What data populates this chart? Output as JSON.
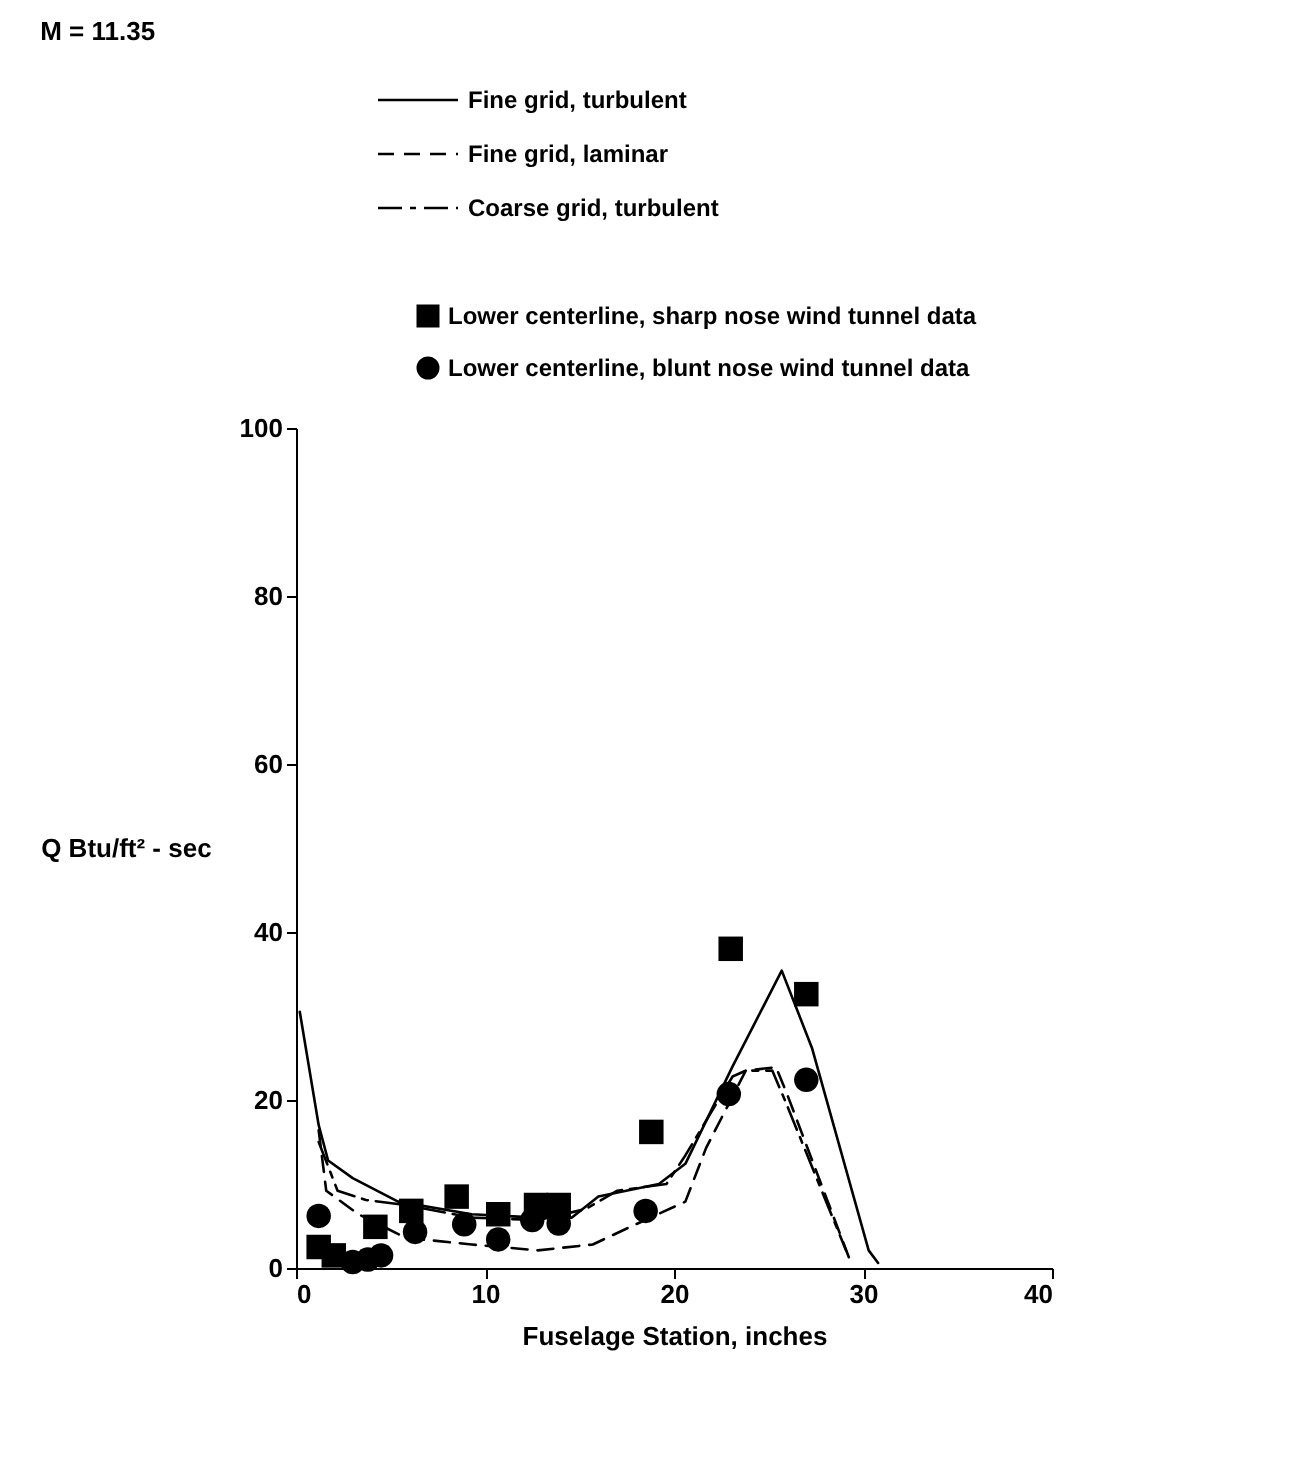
{
  "chart_data": {
    "type": "line",
    "title": "M = 11.35",
    "xlabel": "Fuselage Station, inches",
    "ylabel": "Q Btu/ft² - sec",
    "xlim": [
      0,
      40
    ],
    "ylim": [
      0,
      100
    ],
    "xticks": [
      0,
      10,
      20,
      30,
      40
    ],
    "yticks": [
      0,
      20,
      40,
      60,
      80,
      100
    ],
    "grid": false,
    "legend": "top right",
    "series": [
      {
        "name": "Fine grid, turbulent",
        "line_style": "solid",
        "color": "#000000",
        "x": [
          0.2,
          1.2,
          1.7,
          3,
          5.4,
          9.3,
          12.8,
          14.6,
          16,
          19.2,
          20.6,
          23.1,
          25.7,
          27.3,
          30.3,
          30.8
        ],
        "values": [
          30.5,
          17,
          12.8,
          10.7,
          7.9,
          6.4,
          6,
          6,
          8.5,
          10,
          12.4,
          24,
          35.4,
          26.2,
          2.1,
          0.6
        ]
      },
      {
        "name": "Fine grid, laminar",
        "line_style": "dashed",
        "color": "#000000",
        "x": [
          1.2,
          1.6,
          3.3,
          5.8,
          9.3,
          12.8,
          15.7,
          17.5,
          20.6,
          21.7,
          23.8,
          25.4,
          26,
          29.4
        ],
        "values": [
          16.4,
          9.2,
          6.4,
          3.6,
          2.8,
          2.1,
          2.8,
          4.7,
          7.9,
          14.3,
          23.5,
          23.9,
          20.6,
          0.4
        ]
      },
      {
        "name": "Coarse grid, turbulent",
        "line_style": "dashdot",
        "color": "#000000",
        "x": [
          1.2,
          2.2,
          3.7,
          5.8,
          9.3,
          12.8,
          15.3,
          17,
          19.6,
          20.6,
          23.1,
          23.8,
          25.2,
          25.9,
          29.1
        ],
        "values": [
          15,
          9.2,
          8.1,
          7.5,
          6,
          5.7,
          7,
          9.2,
          10,
          13.4,
          22.8,
          23.5,
          23.5,
          19.8,
          2.1
        ]
      },
      {
        "name": "Lower centerline, sharp nose wind tunnel data",
        "type": "scatter",
        "marker": "square",
        "color": "#000000",
        "x": [
          1.2,
          2,
          4.2,
          6.1,
          8.5,
          10.7,
          12.7,
          13.9,
          18.8,
          23,
          27
        ],
        "values": [
          2.5,
          1.5,
          4.9,
          6.8,
          8.5,
          6.4,
          7.5,
          7.5,
          16.2,
          38,
          32.6
        ]
      },
      {
        "name": "Lower centerline, blunt nose wind tunnel data",
        "type": "scatter",
        "marker": "circle",
        "color": "#000000",
        "x": [
          1.2,
          3,
          3.8,
          4.5,
          6.3,
          8.9,
          10.7,
          12.5,
          13.9,
          18.5,
          22.9,
          27
        ],
        "values": [
          6.2,
          0.7,
          1,
          1.5,
          4.3,
          5.2,
          3.4,
          5.7,
          5.3,
          6.8,
          20.7,
          22.4
        ]
      }
    ]
  }
}
